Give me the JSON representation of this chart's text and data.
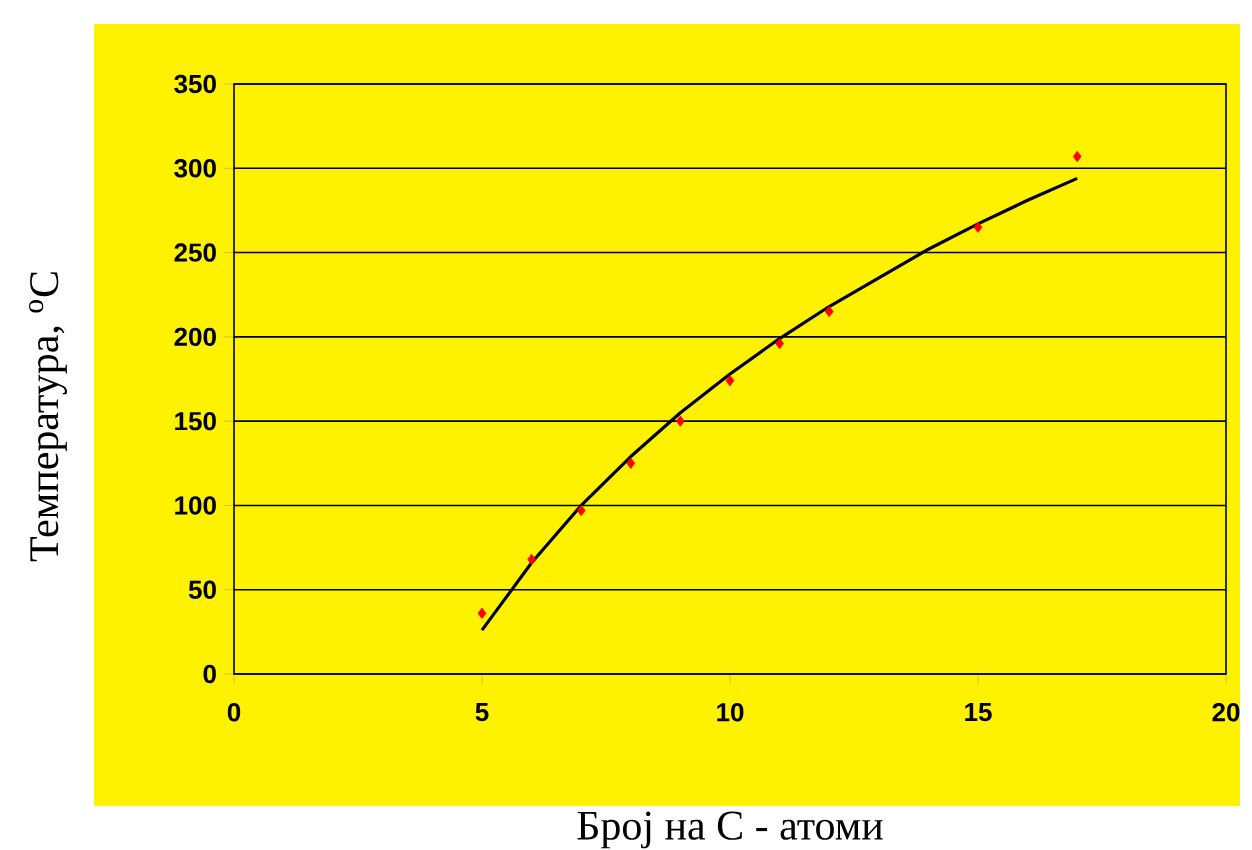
{
  "chart_data": {
    "type": "scatter",
    "xlabel": "Број на C - атоми",
    "ylabel": "Температура, $^{o}$C",
    "xlim": [
      0,
      20
    ],
    "xticks": [
      0,
      5,
      10,
      15,
      20
    ],
    "ylim": [
      0,
      350
    ],
    "yticks": [
      0,
      50,
      100,
      150,
      200,
      250,
      300,
      350
    ],
    "grid": "y",
    "series": [
      {
        "color": "#ff0000",
        "marker": "diamond",
        "x": [
          5,
          6,
          7,
          8,
          9,
          10,
          11,
          12,
          15,
          17
        ],
        "values": [
          36,
          68,
          97,
          125,
          150,
          174,
          196,
          215,
          265,
          307
        ]
      },
      {
        "type": "line",
        "color": "#000000",
        "marker": "none",
        "line_style": "solid",
        "x": [
          5,
          6,
          7,
          8,
          9,
          10,
          11,
          12,
          13,
          14,
          15,
          16,
          17
        ],
        "values": [
          26,
          66,
          100,
          129,
          155,
          178,
          199,
          218,
          235,
          252,
          267,
          281,
          294
        ]
      }
    ]
  }
}
